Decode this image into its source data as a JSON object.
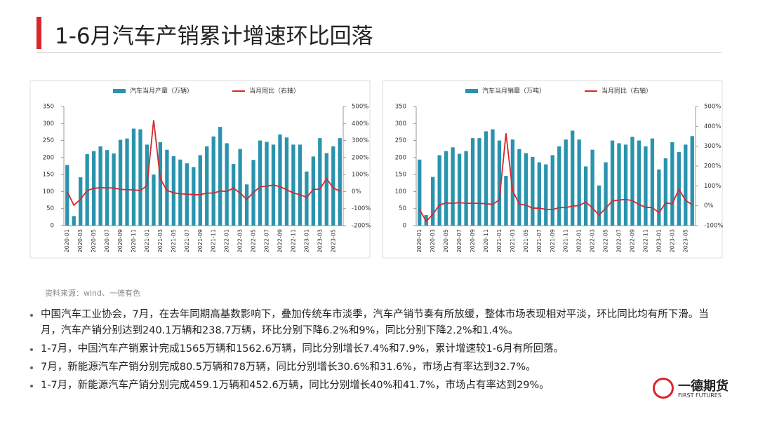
{
  "header": {
    "title": "1-6月汽车产销累计增速环比回落"
  },
  "chart_data": [
    {
      "type": "bar-line",
      "categories": [
        "2020-01",
        null,
        "2020-03",
        null,
        "2020-05",
        null,
        "2020-07",
        null,
        "2020-09",
        null,
        "2020-11",
        null,
        "2021-01",
        null,
        "2021-03",
        null,
        "2021-05",
        null,
        "2021-07",
        null,
        "2021-09",
        null,
        "2021-11",
        null,
        "2022-01",
        null,
        "2022-03",
        null,
        "2022-05",
        null,
        "2022-07",
        null,
        "2022-09",
        null,
        "2022-11",
        null,
        "2023-01",
        null,
        "2023-03",
        null,
        "2023-05",
        null
      ],
      "series": [
        {
          "name": "汽车当月产量（万辆）",
          "color": "#2a93ad",
          "type": "bar",
          "values": [
            178,
            28,
            142,
            210,
            219,
            233,
            222,
            212,
            252,
            256,
            285,
            283,
            238,
            150,
            245,
            223,
            204,
            194,
            183,
            172,
            207,
            233,
            262,
            290,
            242,
            181,
            225,
            121,
            193,
            250,
            246,
            238,
            268,
            259,
            238,
            238,
            159,
            203,
            257,
            213,
            233,
            257
          ]
        },
        {
          "name": "当月同比（右轴）",
          "color": "#d9262b",
          "type": "line",
          "axis": "y2",
          "values": [
            0,
            -80,
            -45,
            6,
            19,
            23,
            22,
            21,
            13,
            11,
            10,
            6,
            35,
            420,
            75,
            7,
            -7,
            -13,
            -15,
            -18,
            -18,
            -9,
            -9,
            3,
            1,
            20,
            -9,
            -46,
            -5,
            28,
            32,
            38,
            29,
            11,
            -8,
            -18,
            -34,
            12,
            15,
            76,
            21,
            3
          ]
        }
      ],
      "ylim": [
        0,
        350
      ],
      "yticks": [
        0,
        50,
        100,
        150,
        200,
        250,
        300,
        350
      ],
      "y2lim": [
        -200,
        500
      ],
      "y2ticks": [
        {
          "value": -200,
          "label": "-200%"
        },
        {
          "value": -100,
          "label": "-100%"
        },
        {
          "value": 0,
          "label": "0%"
        },
        {
          "value": 100,
          "label": "100%"
        },
        {
          "value": 200,
          "label": "200%"
        },
        {
          "value": 300,
          "label": "300%"
        },
        {
          "value": 400,
          "label": "400%"
        },
        {
          "value": 500,
          "label": "500%"
        }
      ]
    },
    {
      "type": "bar-line",
      "categories": [
        "2020-01",
        null,
        "2020-03",
        null,
        "2020-05",
        null,
        "2020-07",
        null,
        "2020-09",
        null,
        "2020-11",
        null,
        "2021-01",
        null,
        "2021-03",
        null,
        "2021-05",
        null,
        "2021-07",
        null,
        "2021-09",
        null,
        "2021-11",
        null,
        "2022-01",
        null,
        "2022-03",
        null,
        "2022-05",
        null,
        "2022-07",
        null,
        "2022-09",
        null,
        "2022-11",
        null,
        "2023-01",
        null,
        "2023-03",
        null,
        "2023-05",
        null
      ],
      "series": [
        {
          "name": "汽车当月销量（万吨）",
          "color": "#2a93ad",
          "type": "bar",
          "values": [
            194,
            31,
            143,
            207,
            219,
            230,
            211,
            219,
            257,
            257,
            277,
            283,
            250,
            146,
            253,
            225,
            213,
            202,
            186,
            180,
            207,
            233,
            253,
            279,
            253,
            174,
            223,
            118,
            186,
            250,
            242,
            238,
            261,
            250,
            233,
            256,
            165,
            198,
            245,
            216,
            238,
            263
          ]
        },
        {
          "name": "当月同比（右轴）",
          "color": "#d9262b",
          "type": "line",
          "axis": "y2",
          "values": [
            -18,
            -79,
            -43,
            4,
            14,
            12,
            16,
            12,
            13,
            12,
            10,
            7,
            30,
            365,
            75,
            9,
            3,
            -12,
            -12,
            -18,
            -19,
            -9,
            -9,
            -2,
            1,
            19,
            -11,
            -47,
            -12,
            24,
            29,
            32,
            26,
            7,
            -8,
            -9,
            -35,
            14,
            10,
            83,
            27,
            5
          ]
        }
      ],
      "ylim": [
        0,
        350
      ],
      "yticks": [
        0,
        50,
        100,
        150,
        200,
        250,
        300,
        350
      ],
      "y2lim": [
        -100,
        500
      ],
      "y2ticks": [
        {
          "value": -100,
          "label": "-100%"
        },
        {
          "value": 0,
          "label": "0%"
        },
        {
          "value": 100,
          "label": "100%"
        },
        {
          "value": 200,
          "label": "200%"
        },
        {
          "value": 300,
          "label": "300%"
        },
        {
          "value": 400,
          "label": "400%"
        },
        {
          "value": 500,
          "label": "500%"
        }
      ]
    }
  ],
  "source": "资料来源：wind、一德有色",
  "bullets": [
    "中国汽车工业协会，7月，在去年同期高基数影响下，叠加传统车市淡季，汽车产销节奏有所放缓，整体市场表现相对平淡，环比同比均有所下滑。当月，汽车产销分别达到240.1万辆和238.7万辆，环比分别下降6.2%和9%，同比分别下降2.2%和1.4%。",
    "1-7月，中国汽车产销累计完成1565万辆和1562.6万辆，同比分别增长7.4%和7.9%，累计增速较1-6月有所回落。",
    "7月，新能源汽车产销分别完成80.5万辆和78万辆，同比分别增长30.6%和31.6%，市场占有率达到32.7%。",
    "1-7月，新能源汽车产销分别完成459.1万辆和452.6万辆，同比分别增长40%和41.7%，市场占有率达到29%。"
  ],
  "logo": {
    "name": "一德期货",
    "sub": "FIRST FUTURES"
  }
}
